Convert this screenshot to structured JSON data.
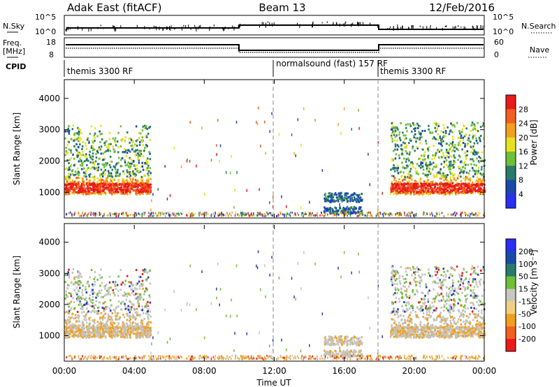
{
  "header": {
    "station": "Adak East (fitACF)",
    "beam": "Beam 13",
    "date": "12/Feb/2016"
  },
  "panels": {
    "nsky": {
      "left_label": "N.Sky",
      "right_label": "N.Search",
      "ticks_left": [
        "10^5",
        "10^0"
      ],
      "ticks_right": [
        "10^5",
        "10^0"
      ]
    },
    "freq": {
      "left_label_top": "Freq.",
      "left_label_unit": "[MHz]",
      "right_label": "Nave",
      "ticks_left": [
        "18",
        "8"
      ],
      "ticks_right": [
        "60",
        "0"
      ]
    },
    "cpid": {
      "label": "CPID",
      "segments": [
        "themis 3300 RF",
        "normalsound (fast) 157 RF",
        "themis 3300 RF"
      ]
    }
  },
  "chart_data": [
    {
      "type": "heatmap",
      "title": "",
      "ylabel": "Slant Range [km]",
      "xlabel": "Time UT",
      "yticks": [
        "4000",
        "3000",
        "2000",
        "1000"
      ],
      "ylim": [
        180,
        4600
      ],
      "xticks": [
        "00:00",
        "04:00",
        "08:00",
        "12:00",
        "16:00",
        "20:00",
        "00:00"
      ],
      "xlim_hours": [
        0,
        24
      ],
      "colorbar": {
        "label": "Power [dB]",
        "ticks": [
          "28",
          "24",
          "20",
          "16",
          "12",
          "8",
          "4"
        ],
        "range": [
          0,
          30
        ],
        "colors": [
          "#2a2ff0",
          "#1a4aa8",
          "#2a7a6a",
          "#6fbf3a",
          "#e8e020",
          "#f0a020",
          "#f06020",
          "#e81a1a"
        ]
      },
      "mode_changes_hours": [
        12,
        18
      ],
      "regions": [
        {
          "name": "",
          "t": [
            0.0,
            4.9
          ],
          "r": [
            900,
            3200
          ],
          "peak_km": 1150,
          "level": 24
        },
        {
          "name": "",
          "t": [
            14.8,
            17.0
          ],
          "r": [
            250,
            950
          ],
          "level": 8
        },
        {
          "name": "",
          "t": [
            18.6,
            24.0
          ],
          "r": [
            950,
            3400
          ],
          "peak_km": 1150,
          "level": 22
        }
      ]
    },
    {
      "type": "heatmap",
      "title": "",
      "ylabel": "Slant Range [km]",
      "xlabel": "Time UT",
      "yticks": [
        "4000",
        "3000",
        "2000",
        "1000"
      ],
      "ylim": [
        180,
        4600
      ],
      "xticks": [
        "00:00",
        "04:00",
        "08:00",
        "12:00",
        "16:00",
        "20:00",
        "00:00"
      ],
      "xlim_hours": [
        0,
        24
      ],
      "colorbar": {
        "label": "Velocity [m s⁻¹]",
        "ticks": [
          "200",
          "100",
          "50",
          "15",
          "-15",
          "-50",
          "-100",
          "-200"
        ],
        "range": [
          -250,
          250
        ],
        "colors": [
          "#e81a1a",
          "#f06020",
          "#f0a020",
          "#f0d080",
          "#c8c8c0",
          "#6fbf3a",
          "#2a7a6a",
          "#1a4aa8",
          "#2a2ff0"
        ]
      },
      "mode_changes_hours": [
        12,
        18
      ]
    }
  ]
}
